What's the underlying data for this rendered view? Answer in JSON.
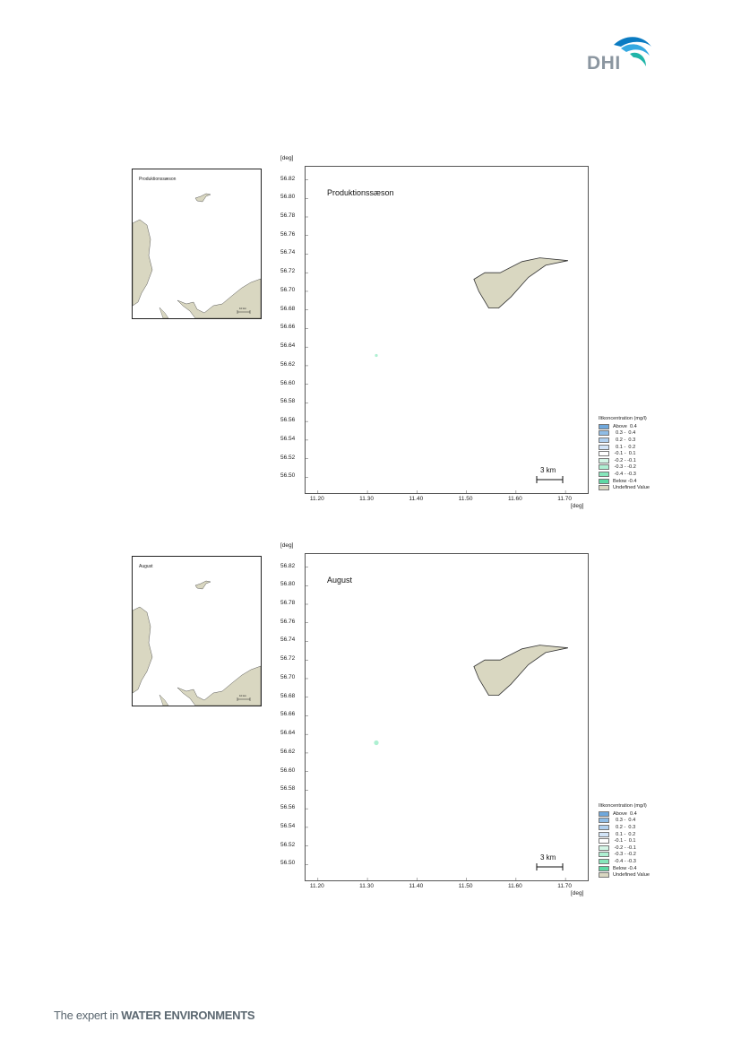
{
  "header": {
    "logo_text": "DHI",
    "logo_colors": [
      "#0a7bc2",
      "#36a9e1",
      "#1fb5a8",
      "#8b96a0"
    ]
  },
  "footer": {
    "tagline_prefix": "The expert in ",
    "tagline_bold": "WATER ENVIRONMENTS"
  },
  "maps": [
    {
      "title": "Produktionssæson",
      "overview_title": "Produktionssæson",
      "overview_scale_label": "10 km",
      "axis_unit": "[deg]",
      "y_ticks": [
        "56.82",
        "56.80",
        "56.78",
        "56.76",
        "56.74",
        "56.72",
        "56.70",
        "56.68",
        "56.66",
        "56.64",
        "56.62",
        "56.60",
        "56.58",
        "56.56",
        "56.54",
        "56.52",
        "56.50"
      ],
      "x_ticks": [
        "11.20",
        "11.30",
        "11.40",
        "11.50",
        "11.60",
        "11.70"
      ],
      "scale_label": "3 km",
      "legend_title": "Iltkoncentration (mg/l)",
      "marker": {
        "lon": 11.318,
        "lat": 56.631,
        "class": "-0.3 - -0.2"
      }
    },
    {
      "title": "August",
      "overview_title": "August",
      "overview_scale_label": "10 km",
      "axis_unit": "[deg]",
      "y_ticks": [
        "56.82",
        "56.80",
        "56.78",
        "56.76",
        "56.74",
        "56.72",
        "56.70",
        "56.68",
        "56.66",
        "56.64",
        "56.62",
        "56.60",
        "56.58",
        "56.56",
        "56.54",
        "56.52",
        "56.50"
      ],
      "x_ticks": [
        "11.20",
        "11.30",
        "11.40",
        "11.50",
        "11.60",
        "11.70"
      ],
      "scale_label": "3 km",
      "legend_title": "Iltkoncentration (mg/l)",
      "marker": {
        "lon": 11.318,
        "lat": 56.631,
        "class": "-0.3 - -0.2"
      }
    }
  ],
  "map_extent": {
    "lon": [
      11.175,
      11.745
    ],
    "lat": [
      56.483,
      56.834
    ]
  },
  "island": {
    "lonlat": [
      [
        11.515,
        56.713
      ],
      [
        11.537,
        56.72
      ],
      [
        11.568,
        56.72
      ],
      [
        11.612,
        56.732
      ],
      [
        11.648,
        56.736
      ],
      [
        11.705,
        56.733
      ],
      [
        11.66,
        56.728
      ],
      [
        11.625,
        56.715
      ],
      [
        11.59,
        56.694
      ],
      [
        11.565,
        56.682
      ],
      [
        11.545,
        56.682
      ],
      [
        11.525,
        56.7
      ],
      [
        11.515,
        56.713
      ]
    ]
  },
  "legend": [
    {
      "label": "Above  0.4",
      "color": "#6fa8dc"
    },
    {
      "label": "  0.3 -  0.4",
      "color": "#8fbde6"
    },
    {
      "label": "  0.2 -  0.3",
      "color": "#b0d0ef"
    },
    {
      "label": "  0.1 -  0.2",
      "color": "#d2e4f7"
    },
    {
      "label": " -0.1 -  0.1",
      "color": "#ffffff"
    },
    {
      "label": " -0.2 - -0.1",
      "color": "#d4f6e6"
    },
    {
      "label": " -0.3 - -0.2",
      "color": "#aef0d2"
    },
    {
      "label": " -0.4 - -0.3",
      "color": "#86e6bb"
    },
    {
      "label": "Below -0.4",
      "color": "#5ed9a4"
    },
    {
      "label": "Undefined Value",
      "color": "#d9d7c1"
    }
  ],
  "land_color": "#d9d7c1",
  "coast_color": "#333333"
}
